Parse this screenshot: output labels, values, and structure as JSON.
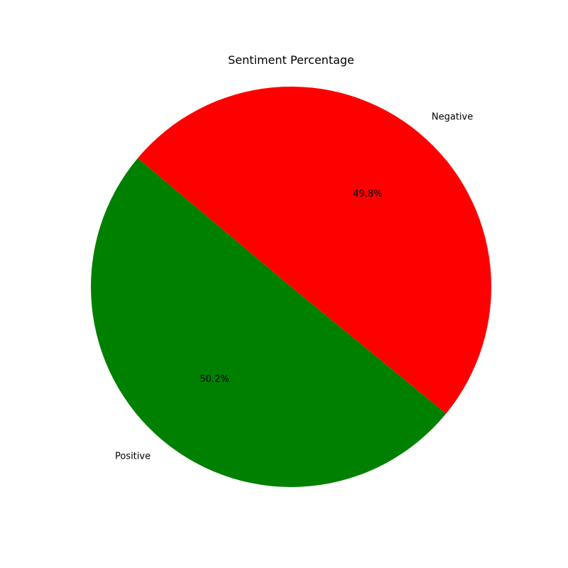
{
  "chart_data": {
    "type": "pie",
    "title": "Sentiment Percentage",
    "start_angle": 140,
    "counterclock": true,
    "slices": [
      {
        "label": "Positive",
        "value": 50.2,
        "pct_label": "50.2%",
        "color": "#008000"
      },
      {
        "label": "Negative",
        "value": 49.8,
        "pct_label": "49.8%",
        "color": "#ff0000"
      }
    ],
    "legend": "none"
  }
}
